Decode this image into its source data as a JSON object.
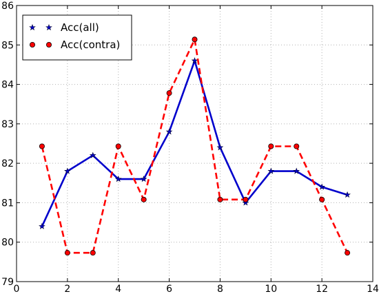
{
  "chart_data": {
    "type": "line",
    "title": "",
    "xlabel": "",
    "ylabel": "",
    "xlim": [
      0,
      14
    ],
    "ylim": [
      79,
      86
    ],
    "xticks": [
      0,
      2,
      4,
      6,
      8,
      10,
      12,
      14
    ],
    "yticks": [
      79,
      80,
      81,
      82,
      83,
      84,
      85,
      86
    ],
    "grid": true,
    "legend_position": "top-left",
    "x": [
      1,
      2,
      3,
      4,
      5,
      6,
      7,
      8,
      9,
      10,
      11,
      12,
      13
    ],
    "series": [
      {
        "name": "Acc(all)",
        "color": "#0000cc",
        "line_style": "solid",
        "marker": "star",
        "values": [
          80.4,
          81.8,
          82.2,
          81.6,
          81.6,
          82.8,
          84.6,
          82.4,
          81.0,
          81.8,
          81.8,
          81.4,
          81.2
        ]
      },
      {
        "name": "Acc(contra)",
        "color": "#ff0000",
        "line_style": "dashed",
        "marker": "circle",
        "values": [
          82.43,
          79.73,
          79.73,
          82.43,
          81.08,
          83.78,
          85.14,
          81.08,
          81.08,
          82.43,
          82.43,
          81.08,
          79.73
        ]
      }
    ]
  }
}
